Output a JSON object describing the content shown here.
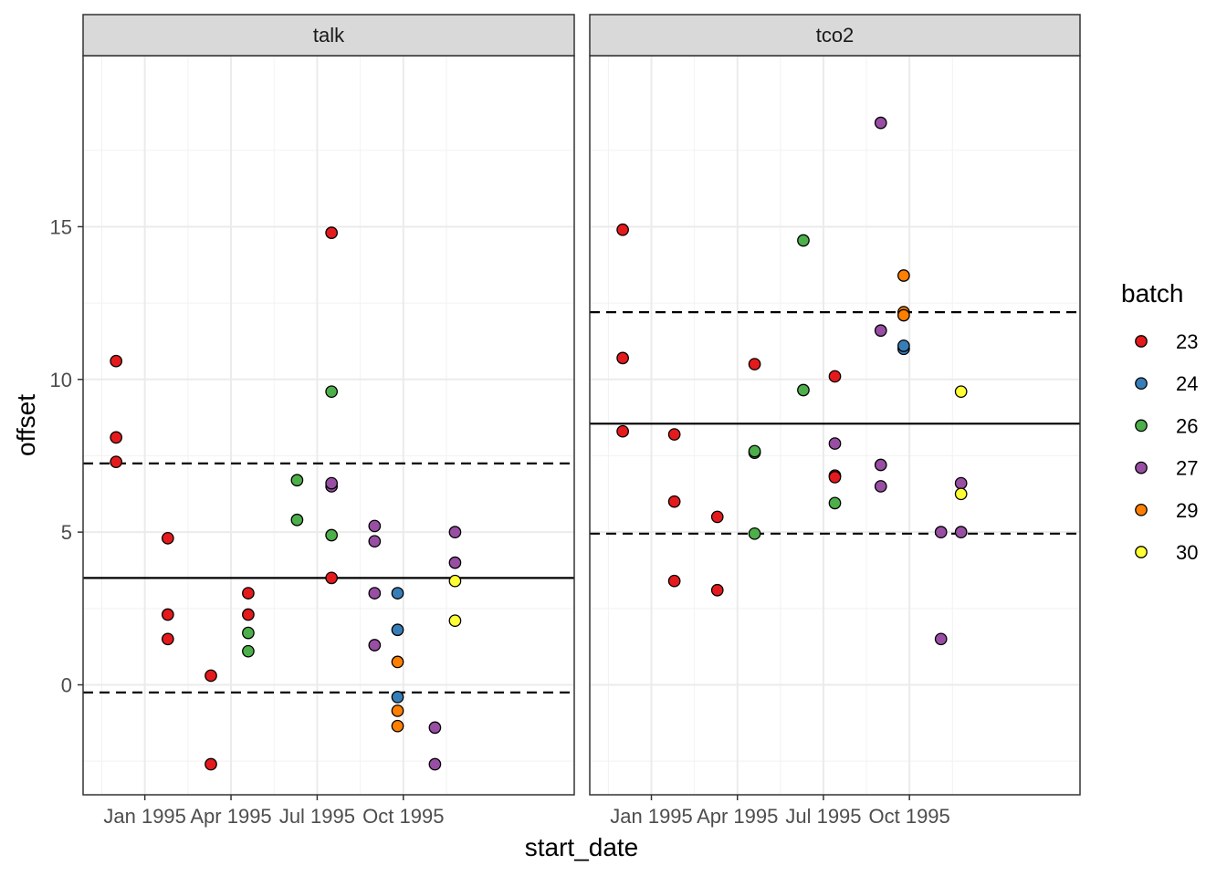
{
  "chart_data": {
    "type": "scatter",
    "xlabel": "start_date",
    "ylabel": "offset",
    "x_units": "months since Jan 1995 (0 = Jan 1995)",
    "xlim": [
      -2.15,
      14.95
    ],
    "ylim": [
      -3.6,
      20.6
    ],
    "x_ticks": [
      {
        "value": 0,
        "label": "Jan 1995"
      },
      {
        "value": 3,
        "label": "Apr 1995"
      },
      {
        "value": 6,
        "label": "Jul 1995"
      },
      {
        "value": 9,
        "label": "Oct 1995"
      }
    ],
    "y_ticks": [
      {
        "value": 0,
        "label": "0"
      },
      {
        "value": 5,
        "label": "5"
      },
      {
        "value": 10,
        "label": "10"
      },
      {
        "value": 15,
        "label": "15"
      }
    ],
    "legend": {
      "title": "batch",
      "entries": [
        {
          "label": "23",
          "color": "#E41A1C"
        },
        {
          "label": "24",
          "color": "#377EB8"
        },
        {
          "label": "26",
          "color": "#4DAF4A"
        },
        {
          "label": "27",
          "color": "#984EA3"
        },
        {
          "label": "29",
          "color": "#FF7F00"
        },
        {
          "label": "30",
          "color": "#FFFF33"
        }
      ]
    },
    "panels": [
      {
        "name": "talk",
        "mean_line": 3.5,
        "sd_lines": [
          7.25,
          -0.25
        ],
        "points": [
          {
            "x": -1.0,
            "y": 10.6,
            "batch": "23"
          },
          {
            "x": -1.0,
            "y": 8.1,
            "batch": "23"
          },
          {
            "x": -1.0,
            "y": 7.3,
            "batch": "23"
          },
          {
            "x": 0.8,
            "y": 4.8,
            "batch": "23"
          },
          {
            "x": 0.8,
            "y": 2.3,
            "batch": "23"
          },
          {
            "x": 0.8,
            "y": 1.5,
            "batch": "23"
          },
          {
            "x": 2.3,
            "y": 0.3,
            "batch": "23"
          },
          {
            "x": 2.3,
            "y": -2.6,
            "batch": "23"
          },
          {
            "x": 3.6,
            "y": 3.0,
            "batch": "23"
          },
          {
            "x": 3.6,
            "y": 2.3,
            "batch": "23"
          },
          {
            "x": 3.6,
            "y": 1.7,
            "batch": "26"
          },
          {
            "x": 3.6,
            "y": 1.1,
            "batch": "26"
          },
          {
            "x": 5.3,
            "y": 6.7,
            "batch": "26"
          },
          {
            "x": 5.3,
            "y": 5.4,
            "batch": "26"
          },
          {
            "x": 6.5,
            "y": 14.8,
            "batch": "23"
          },
          {
            "x": 6.5,
            "y": 9.6,
            "batch": "26"
          },
          {
            "x": 6.5,
            "y": 6.5,
            "batch": "27"
          },
          {
            "x": 6.5,
            "y": 6.6,
            "batch": "27"
          },
          {
            "x": 6.5,
            "y": 4.9,
            "batch": "26"
          },
          {
            "x": 6.5,
            "y": 3.5,
            "batch": "23"
          },
          {
            "x": 8.0,
            "y": 5.2,
            "batch": "27"
          },
          {
            "x": 8.0,
            "y": 4.7,
            "batch": "27"
          },
          {
            "x": 8.0,
            "y": 3.0,
            "batch": "27"
          },
          {
            "x": 8.0,
            "y": 1.3,
            "batch": "27"
          },
          {
            "x": 8.8,
            "y": 3.0,
            "batch": "24"
          },
          {
            "x": 8.8,
            "y": 1.8,
            "batch": "24"
          },
          {
            "x": 8.8,
            "y": 0.75,
            "batch": "29"
          },
          {
            "x": 8.8,
            "y": -0.4,
            "batch": "24"
          },
          {
            "x": 8.8,
            "y": -0.85,
            "batch": "29"
          },
          {
            "x": 8.8,
            "y": -1.35,
            "batch": "29"
          },
          {
            "x": 10.1,
            "y": -1.4,
            "batch": "27"
          },
          {
            "x": 10.1,
            "y": -2.6,
            "batch": "27"
          },
          {
            "x": 10.8,
            "y": 5.0,
            "batch": "27"
          },
          {
            "x": 10.8,
            "y": 4.0,
            "batch": "27"
          },
          {
            "x": 10.8,
            "y": 3.4,
            "batch": "30"
          },
          {
            "x": 10.8,
            "y": 2.1,
            "batch": "30"
          }
        ]
      },
      {
        "name": "tco2",
        "mean_line": 8.55,
        "sd_lines": [
          12.2,
          4.95
        ],
        "points": [
          {
            "x": -1.0,
            "y": 14.9,
            "batch": "23"
          },
          {
            "x": -1.0,
            "y": 10.7,
            "batch": "23"
          },
          {
            "x": -1.0,
            "y": 8.3,
            "batch": "23"
          },
          {
            "x": 0.8,
            "y": 8.2,
            "batch": "23"
          },
          {
            "x": 0.8,
            "y": 6.0,
            "batch": "23"
          },
          {
            "x": 0.8,
            "y": 3.4,
            "batch": "23"
          },
          {
            "x": 2.3,
            "y": 5.5,
            "batch": "23"
          },
          {
            "x": 2.3,
            "y": 3.1,
            "batch": "23"
          },
          {
            "x": 3.6,
            "y": 10.5,
            "batch": "23"
          },
          {
            "x": 3.6,
            "y": 7.6,
            "batch": "26"
          },
          {
            "x": 3.6,
            "y": 7.65,
            "batch": "26"
          },
          {
            "x": 3.6,
            "y": 4.95,
            "batch": "26"
          },
          {
            "x": 5.3,
            "y": 14.55,
            "batch": "26"
          },
          {
            "x": 5.3,
            "y": 9.65,
            "batch": "26"
          },
          {
            "x": 6.4,
            "y": 10.1,
            "batch": "23"
          },
          {
            "x": 6.4,
            "y": 7.9,
            "batch": "27"
          },
          {
            "x": 6.4,
            "y": 6.85,
            "batch": "23"
          },
          {
            "x": 6.4,
            "y": 6.8,
            "batch": "23"
          },
          {
            "x": 6.4,
            "y": 5.95,
            "batch": "26"
          },
          {
            "x": 8.0,
            "y": 18.4,
            "batch": "27"
          },
          {
            "x": 8.0,
            "y": 11.6,
            "batch": "27"
          },
          {
            "x": 8.0,
            "y": 7.2,
            "batch": "27"
          },
          {
            "x": 8.0,
            "y": 6.5,
            "batch": "27"
          },
          {
            "x": 8.8,
            "y": 13.4,
            "batch": "29"
          },
          {
            "x": 8.8,
            "y": 12.2,
            "batch": "29"
          },
          {
            "x": 8.8,
            "y": 12.1,
            "batch": "29"
          },
          {
            "x": 8.8,
            "y": 11.0,
            "batch": "24"
          },
          {
            "x": 8.8,
            "y": 11.1,
            "batch": "24"
          },
          {
            "x": 10.1,
            "y": 5.0,
            "batch": "27"
          },
          {
            "x": 10.1,
            "y": 1.5,
            "batch": "27"
          },
          {
            "x": 10.8,
            "y": 9.6,
            "batch": "30"
          },
          {
            "x": 10.8,
            "y": 6.6,
            "batch": "27"
          },
          {
            "x": 10.8,
            "y": 6.25,
            "batch": "30"
          },
          {
            "x": 10.8,
            "y": 5.0,
            "batch": "27"
          }
        ]
      }
    ]
  }
}
